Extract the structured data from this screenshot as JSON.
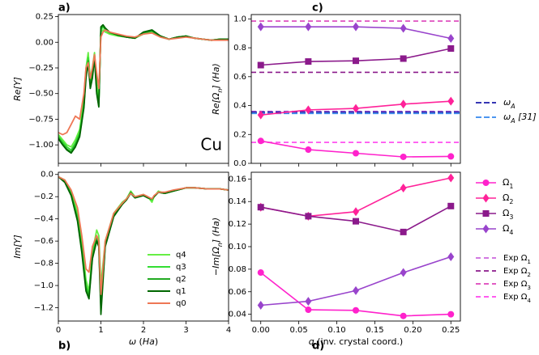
{
  "panel_labels": {
    "a": "a)",
    "b": "b)",
    "c": "c)",
    "d": "d)"
  },
  "chart_data": [
    {
      "id": "a",
      "type": "line",
      "xlim": [
        0,
        4
      ],
      "ylim": [
        -1.18,
        0.27
      ],
      "xticks": [
        0,
        1,
        2,
        3,
        4
      ],
      "xtick_labels": [
        "",
        "",
        "",
        "",
        ""
      ],
      "yticks": [
        0.25,
        0.0,
        -0.25,
        -0.5,
        -0.75,
        -1.0
      ],
      "ytick_labels": [
        "0.25",
        "0.00",
        "−0.25",
        "−0.50",
        "−0.75",
        "−1.00"
      ],
      "ylabel": "Re[Y]",
      "annotation": "Cu",
      "series": [
        {
          "name": "q4",
          "color": "#66ee44",
          "x": [
            0,
            0.1,
            0.2,
            0.3,
            0.4,
            0.5,
            0.6,
            0.65,
            0.7,
            0.75,
            0.8,
            0.85,
            0.9,
            0.95,
            1.0,
            1.05,
            1.1,
            1.2,
            1.4,
            1.6,
            1.8,
            2.0,
            2.2,
            2.4,
            2.6,
            2.8,
            3.0,
            3.2,
            3.4,
            3.6,
            3.8,
            4.0
          ],
          "y": [
            -0.9,
            -0.95,
            -1.0,
            -1.02,
            -0.95,
            -0.85,
            -0.55,
            -0.25,
            -0.1,
            -0.35,
            -0.25,
            -0.1,
            -0.4,
            -0.55,
            0.1,
            0.12,
            0.1,
            0.08,
            0.06,
            0.05,
            0.04,
            0.08,
            0.1,
            0.05,
            0.03,
            0.05,
            0.06,
            0.04,
            0.03,
            0.02,
            0.03,
            0.03
          ]
        },
        {
          "name": "q3",
          "color": "#33dd33",
          "x": [
            0,
            0.1,
            0.2,
            0.3,
            0.4,
            0.5,
            0.6,
            0.65,
            0.7,
            0.75,
            0.8,
            0.85,
            0.9,
            0.95,
            1.0,
            1.05,
            1.1,
            1.2,
            1.4,
            1.6,
            1.8,
            2.0,
            2.2,
            2.4,
            2.6,
            2.8,
            3.0,
            3.2,
            3.4,
            3.6,
            3.8,
            4.0
          ],
          "y": [
            -0.92,
            -0.97,
            -1.02,
            -1.05,
            -0.98,
            -0.88,
            -0.6,
            -0.3,
            -0.15,
            -0.4,
            -0.3,
            -0.12,
            -0.45,
            -0.6,
            0.12,
            0.15,
            0.12,
            0.09,
            0.07,
            0.05,
            0.04,
            0.09,
            0.11,
            0.06,
            0.03,
            0.05,
            0.06,
            0.04,
            0.03,
            0.02,
            0.03,
            0.03
          ]
        },
        {
          "name": "q2",
          "color": "#22aa22",
          "x": [
            0,
            0.1,
            0.2,
            0.3,
            0.4,
            0.5,
            0.6,
            0.65,
            0.7,
            0.75,
            0.8,
            0.85,
            0.9,
            0.95,
            1.0,
            1.05,
            1.1,
            1.2,
            1.4,
            1.6,
            1.8,
            2.0,
            2.2,
            2.4,
            2.6,
            2.8,
            3.0,
            3.2,
            3.4,
            3.6,
            3.8,
            4.0
          ],
          "y": [
            -0.93,
            -0.99,
            -1.04,
            -1.07,
            -1.0,
            -0.9,
            -0.62,
            -0.32,
            -0.18,
            -0.42,
            -0.33,
            -0.14,
            -0.48,
            -0.62,
            0.14,
            0.16,
            0.13,
            0.1,
            0.07,
            0.05,
            0.04,
            0.09,
            0.11,
            0.06,
            0.03,
            0.05,
            0.06,
            0.04,
            0.03,
            0.02,
            0.03,
            0.03
          ]
        },
        {
          "name": "q1",
          "color": "#006600",
          "x": [
            0,
            0.1,
            0.2,
            0.3,
            0.4,
            0.5,
            0.6,
            0.65,
            0.7,
            0.75,
            0.8,
            0.85,
            0.9,
            0.95,
            1.0,
            1.05,
            1.1,
            1.2,
            1.4,
            1.6,
            1.8,
            2.0,
            2.2,
            2.4,
            2.6,
            2.8,
            3.0,
            3.2,
            3.4,
            3.6,
            3.8,
            4.0
          ],
          "y": [
            -0.94,
            -1.0,
            -1.05,
            -1.08,
            -1.02,
            -0.92,
            -0.64,
            -0.35,
            -0.2,
            -0.45,
            -0.35,
            -0.15,
            -0.5,
            -0.63,
            0.15,
            0.17,
            0.14,
            0.1,
            0.07,
            0.05,
            0.04,
            0.1,
            0.12,
            0.06,
            0.03,
            0.05,
            0.06,
            0.04,
            0.03,
            0.02,
            0.03,
            0.03
          ]
        },
        {
          "name": "q0",
          "color": "#ee7755",
          "x": [
            0,
            0.1,
            0.2,
            0.3,
            0.4,
            0.5,
            0.6,
            0.65,
            0.7,
            0.75,
            0.8,
            0.85,
            0.9,
            0.95,
            1.0,
            1.05,
            1.1,
            1.2,
            1.4,
            1.6,
            1.8,
            2.0,
            2.2,
            2.4,
            2.6,
            2.8,
            3.0,
            3.2,
            3.4,
            3.6,
            3.8,
            4.0
          ],
          "y": [
            -0.88,
            -0.9,
            -0.88,
            -0.8,
            -0.72,
            -0.75,
            -0.5,
            -0.25,
            -0.2,
            -0.35,
            -0.25,
            -0.12,
            -0.3,
            -0.45,
            0.05,
            0.1,
            0.12,
            0.1,
            0.08,
            0.06,
            0.05,
            0.08,
            0.09,
            0.05,
            0.03,
            0.04,
            0.05,
            0.04,
            0.03,
            0.02,
            0.02,
            0.02
          ]
        }
      ]
    },
    {
      "id": "b",
      "type": "line",
      "xlim": [
        0,
        4
      ],
      "ylim": [
        -1.32,
        0.02
      ],
      "xticks": [
        0,
        1,
        2,
        3,
        4
      ],
      "xtick_labels": [
        "0",
        "1",
        "2",
        "3",
        "4"
      ],
      "yticks": [
        0.0,
        -0.2,
        -0.4,
        -0.6,
        -0.8,
        -1.0,
        -1.2
      ],
      "ytick_labels": [
        "0.0",
        "−0.2",
        "−0.4",
        "−0.6",
        "−0.8",
        "−1.0",
        "−1.2"
      ],
      "xlabel": "ω (Ha)",
      "ylabel": "Im[Y]",
      "legend": {
        "position": "lower-center",
        "entries": [
          "q4",
          "q3",
          "q2",
          "q1",
          "q0"
        ]
      },
      "series": [
        {
          "name": "q4",
          "color": "#66ee44",
          "x": [
            0,
            0.15,
            0.3,
            0.45,
            0.55,
            0.65,
            0.72,
            0.8,
            0.9,
            0.95,
            1.0,
            1.1,
            1.3,
            1.5,
            1.6,
            1.7,
            1.8,
            2.0,
            2.1,
            2.2,
            2.25,
            2.35,
            2.5,
            2.7,
            3.0,
            3.2,
            3.5,
            3.8,
            4.0
          ],
          "y": [
            -0.02,
            -0.05,
            -0.15,
            -0.35,
            -0.6,
            -0.95,
            -1.05,
            -0.7,
            -0.5,
            -0.55,
            -1.0,
            -0.6,
            -0.35,
            -0.25,
            -0.22,
            -0.15,
            -0.2,
            -0.18,
            -0.2,
            -0.25,
            -0.2,
            -0.15,
            -0.17,
            -0.15,
            -0.12,
            -0.12,
            -0.13,
            -0.13,
            -0.14
          ]
        },
        {
          "name": "q3",
          "color": "#33dd33",
          "x": [
            0,
            0.15,
            0.3,
            0.45,
            0.55,
            0.65,
            0.72,
            0.8,
            0.9,
            0.95,
            1.0,
            1.1,
            1.3,
            1.5,
            1.6,
            1.7,
            1.8,
            2.0,
            2.1,
            2.2,
            2.25,
            2.35,
            2.5,
            2.7,
            3.0,
            3.2,
            3.5,
            3.8,
            4.0
          ],
          "y": [
            -0.02,
            -0.06,
            -0.17,
            -0.38,
            -0.65,
            -1.0,
            -1.08,
            -0.72,
            -0.55,
            -0.6,
            -1.1,
            -0.62,
            -0.36,
            -0.26,
            -0.22,
            -0.16,
            -0.21,
            -0.19,
            -0.21,
            -0.23,
            -0.2,
            -0.16,
            -0.17,
            -0.15,
            -0.12,
            -0.12,
            -0.13,
            -0.13,
            -0.14
          ]
        },
        {
          "name": "q2",
          "color": "#22aa22",
          "x": [
            0,
            0.15,
            0.3,
            0.45,
            0.55,
            0.65,
            0.72,
            0.8,
            0.9,
            0.95,
            1.0,
            1.1,
            1.3,
            1.5,
            1.6,
            1.7,
            1.8,
            2.0,
            2.1,
            2.2,
            2.25,
            2.35,
            2.5,
            2.7,
            3.0,
            3.2,
            3.5,
            3.8,
            4.0
          ],
          "y": [
            -0.02,
            -0.06,
            -0.18,
            -0.4,
            -0.68,
            -1.02,
            -1.1,
            -0.74,
            -0.58,
            -0.63,
            -1.2,
            -0.64,
            -0.37,
            -0.27,
            -0.23,
            -0.16,
            -0.21,
            -0.19,
            -0.21,
            -0.22,
            -0.2,
            -0.16,
            -0.17,
            -0.15,
            -0.12,
            -0.12,
            -0.13,
            -0.13,
            -0.14
          ]
        },
        {
          "name": "q1",
          "color": "#006600",
          "x": [
            0,
            0.15,
            0.3,
            0.45,
            0.55,
            0.65,
            0.72,
            0.8,
            0.9,
            0.95,
            1.0,
            1.1,
            1.3,
            1.5,
            1.6,
            1.7,
            1.8,
            2.0,
            2.1,
            2.2,
            2.25,
            2.35,
            2.5,
            2.7,
            3.0,
            3.2,
            3.5,
            3.8,
            4.0
          ],
          "y": [
            -0.02,
            -0.07,
            -0.19,
            -0.42,
            -0.7,
            -1.05,
            -1.12,
            -0.76,
            -0.6,
            -0.65,
            -1.26,
            -0.65,
            -0.38,
            -0.27,
            -0.23,
            -0.17,
            -0.21,
            -0.19,
            -0.21,
            -0.22,
            -0.2,
            -0.16,
            -0.17,
            -0.15,
            -0.12,
            -0.12,
            -0.13,
            -0.13,
            -0.14
          ]
        },
        {
          "name": "q0",
          "color": "#ee7755",
          "x": [
            0,
            0.15,
            0.3,
            0.45,
            0.55,
            0.65,
            0.72,
            0.8,
            0.9,
            0.95,
            1.0,
            1.1,
            1.3,
            1.5,
            1.6,
            1.7,
            1.8,
            2.0,
            2.1,
            2.2,
            2.25,
            2.35,
            2.5,
            2.7,
            3.0,
            3.2,
            3.5,
            3.8,
            4.0
          ],
          "y": [
            -0.02,
            -0.05,
            -0.14,
            -0.3,
            -0.55,
            -0.85,
            -0.88,
            -0.65,
            -0.55,
            -0.6,
            -1.08,
            -0.6,
            -0.35,
            -0.26,
            -0.22,
            -0.17,
            -0.2,
            -0.18,
            -0.2,
            -0.22,
            -0.19,
            -0.16,
            -0.16,
            -0.14,
            -0.12,
            -0.12,
            -0.13,
            -0.13,
            -0.14
          ]
        }
      ]
    },
    {
      "id": "c",
      "type": "line",
      "xlim": [
        -0.0125,
        0.2625
      ],
      "ylim": [
        0.0,
        1.03
      ],
      "xticks": [
        0.0,
        0.05,
        0.1,
        0.15,
        0.2,
        0.25
      ],
      "xtick_labels": [
        "",
        "",
        "",
        "",
        "",
        ""
      ],
      "yticks": [
        0.0,
        0.2,
        0.4,
        0.6,
        0.8,
        1.0
      ],
      "ytick_labels": [
        "0.0",
        "0.2",
        "0.4",
        "0.6",
        "0.8",
        "1.0"
      ],
      "ylabel": "Re[Ωn] (Ha)",
      "series": [
        {
          "name": "Ω1",
          "color": "#ff22cc",
          "marker": "circle",
          "x": [
            0.0,
            0.0625,
            0.125,
            0.1875,
            0.25
          ],
          "y": [
            0.155,
            0.095,
            0.07,
            0.045,
            0.048
          ]
        },
        {
          "name": "Ω2",
          "color": "#ff2299",
          "marker": "diamond",
          "x": [
            0.0,
            0.0625,
            0.125,
            0.1875,
            0.25
          ],
          "y": [
            0.335,
            0.37,
            0.38,
            0.41,
            0.43
          ]
        },
        {
          "name": "Ω3",
          "color": "#8b1a8b",
          "marker": "square",
          "x": [
            0.0,
            0.0625,
            0.125,
            0.1875,
            0.25
          ],
          "y": [
            0.68,
            0.705,
            0.71,
            0.725,
            0.795
          ]
        },
        {
          "name": "Ω4",
          "color": "#9944cc",
          "marker": "diamond",
          "x": [
            0.0,
            0.0625,
            0.125,
            0.1875,
            0.25
          ],
          "y": [
            0.945,
            0.945,
            0.945,
            0.935,
            0.865
          ]
        }
      ],
      "hlines": [
        {
          "name": "Exp Ω1",
          "y": 0.36,
          "color": "#cc66dd",
          "dash": "6,4"
        },
        {
          "name": "Exp Ω2",
          "y": 0.63,
          "color": "#8b1a8b",
          "dash": "6,4"
        },
        {
          "name": "Exp Ω3",
          "y": 0.985,
          "color": "#dd44bb",
          "dash": "6,4"
        },
        {
          "name": "Exp Ω4",
          "y": 0.145,
          "color": "#ff44ee",
          "dash": "6,4"
        },
        {
          "name": "ωA",
          "y": 0.355,
          "color": "#1a1aaa",
          "dash": "7,3"
        },
        {
          "name": "ωA [31]",
          "y": 0.345,
          "color": "#3388ee",
          "dash": "7,3"
        }
      ],
      "legend": {
        "position": "right",
        "entries": [
          "ωA",
          "ωA [31]"
        ]
      }
    },
    {
      "id": "d",
      "type": "line",
      "xlim": [
        -0.0125,
        0.2625
      ],
      "ylim": [
        0.034,
        0.166
      ],
      "xticks": [
        0.0,
        0.05,
        0.1,
        0.15,
        0.2,
        0.25
      ],
      "xtick_labels": [
        "0.00",
        "0.05",
        "0.10",
        "0.15",
        "0.20",
        "0.25"
      ],
      "yticks": [
        0.04,
        0.06,
        0.08,
        0.1,
        0.12,
        0.14,
        0.16
      ],
      "ytick_labels": [
        "0.04",
        "0.06",
        "0.08",
        "0.10",
        "0.12",
        "0.14",
        "0.16"
      ],
      "xlabel": "q (inv. crystal coord.)",
      "ylabel": "−Im[Ωn] (Ha)",
      "series": [
        {
          "name": "Ω1",
          "color": "#ff22cc",
          "marker": "circle",
          "x": [
            0.0,
            0.0625,
            0.125,
            0.1875,
            0.25
          ],
          "y": [
            0.077,
            0.044,
            0.0435,
            0.0385,
            0.04
          ]
        },
        {
          "name": "Ω2",
          "color": "#ff2299",
          "marker": "diamond",
          "x": [
            0.0,
            0.0625,
            0.125,
            0.1875,
            0.25
          ],
          "y": [
            0.135,
            0.127,
            0.131,
            0.152,
            0.161
          ]
        },
        {
          "name": "Ω3",
          "color": "#8b1a8b",
          "marker": "square",
          "x": [
            0.0,
            0.0625,
            0.125,
            0.1875,
            0.25
          ],
          "y": [
            0.135,
            0.127,
            0.1225,
            0.113,
            0.136
          ]
        },
        {
          "name": "Ω4",
          "color": "#9944cc",
          "marker": "diamond",
          "x": [
            0.0,
            0.0625,
            0.125,
            0.1875,
            0.25
          ],
          "y": [
            0.048,
            0.0515,
            0.061,
            0.077,
            0.091
          ]
        }
      ],
      "legend_markers": {
        "position": "right",
        "entries": [
          "Ω1",
          "Ω2",
          "Ω3",
          "Ω4"
        ]
      },
      "legend_exp": {
        "position": "right",
        "entries": [
          "Exp Ω1",
          "Exp Ω2",
          "Exp Ω3",
          "Exp Ω4"
        ]
      }
    }
  ]
}
